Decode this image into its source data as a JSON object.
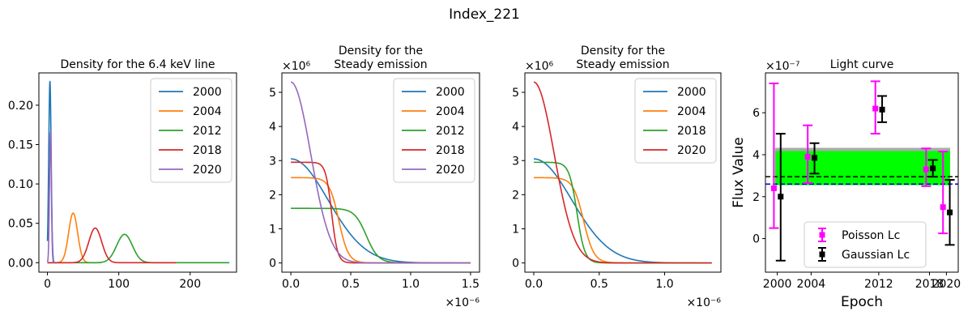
{
  "figure": {
    "suptitle": "Index_221"
  },
  "chart_data": [
    {
      "type": "line",
      "title": "Density for the 6.4 keV line",
      "xlabel": "",
      "ylabel": "",
      "xlim": [
        -12,
        265
      ],
      "ylim": [
        -0.012,
        0.241
      ],
      "xticks": [
        0,
        100,
        200
      ],
      "xtick_labels": [
        "0",
        "100",
        "200"
      ],
      "yticks": [
        0,
        0.05,
        0.1,
        0.15,
        0.2
      ],
      "ytick_labels": [
        "0.00",
        "0.05",
        "0.10",
        "0.15",
        "0.20"
      ],
      "x_multiplier": "",
      "y_multiplier": "",
      "legend_loc": "upper right",
      "series": [
        {
          "name": "2000",
          "color": "#1f77b4",
          "kind": "gauss",
          "mu": 3.5,
          "sigma": 1.7,
          "amp": 0.23,
          "x_start": 0,
          "x_end": 12,
          "tail": 0
        },
        {
          "name": "2004",
          "color": "#ff7f0e",
          "kind": "gauss",
          "mu": 36,
          "sigma": 6.3,
          "amp": 0.063,
          "x_start": 0,
          "x_end": 75,
          "tail": 0
        },
        {
          "name": "2012",
          "color": "#2ca02c",
          "kind": "gauss",
          "mu": 108,
          "sigma": 11,
          "amp": 0.036,
          "x_start": 0,
          "x_end": 255,
          "tail": 0
        },
        {
          "name": "2018",
          "color": "#d62728",
          "kind": "gauss",
          "mu": 67,
          "sigma": 9,
          "amp": 0.044,
          "x_start": 0,
          "x_end": 180,
          "tail": 0
        },
        {
          "name": "2020",
          "color": "#9467bd",
          "kind": "gauss",
          "mu": 4.2,
          "sigma": 1.3,
          "amp": 0.165,
          "x_start": 0,
          "x_end": 10,
          "tail": 0
        }
      ]
    },
    {
      "type": "line",
      "title": "Density for the\nSteady emission",
      "xlabel": "",
      "ylabel": "",
      "xlim": [
        -0.075,
        1.575
      ],
      "ylim": [
        -0.27,
        5.57
      ],
      "xticks": [
        0,
        0.5,
        1.0,
        1.5
      ],
      "xtick_labels": [
        "0.0",
        "0.5",
        "1.0",
        "1.5"
      ],
      "yticks": [
        0,
        1,
        2,
        3,
        4,
        5
      ],
      "ytick_labels": [
        "0",
        "1",
        "2",
        "3",
        "4",
        "5"
      ],
      "x_multiplier": "×10⁻⁶",
      "y_multiplier": "×10⁶",
      "legend_loc": "upper right",
      "series": [
        {
          "name": "2000",
          "color": "#1f77b4",
          "kind": "halfgauss",
          "amp": 3.05,
          "sigma": 0.31,
          "x_start": 0,
          "x_end": 1.5
        },
        {
          "name": "2004",
          "color": "#ff7f0e",
          "kind": "plateau",
          "amp": 2.5,
          "edge": 0.4,
          "w": 0.04,
          "x_start": 0,
          "x_end": 1.5
        },
        {
          "name": "2012",
          "color": "#2ca02c",
          "kind": "plateau",
          "amp": 1.6,
          "edge": 0.63,
          "w": 0.05,
          "x_start": 0,
          "x_end": 1.5
        },
        {
          "name": "2018",
          "color": "#d62728",
          "kind": "plateau",
          "amp": 2.95,
          "edge": 0.34,
          "w": 0.025,
          "x_start": 0,
          "x_end": 1.5
        },
        {
          "name": "2020",
          "color": "#9467bd",
          "kind": "halfgauss",
          "amp": 5.3,
          "sigma": 0.165,
          "x_start": 0,
          "x_end": 1.5
        }
      ]
    },
    {
      "type": "line",
      "title": "Density for the\nSteady emission",
      "xlabel": "",
      "ylabel": "",
      "xlim": [
        -0.068,
        1.43
      ],
      "ylim": [
        -0.27,
        5.57
      ],
      "xticks": [
        0,
        0.5,
        1.0
      ],
      "xtick_labels": [
        "0.0",
        "0.5",
        "1.0"
      ],
      "yticks": [
        0,
        1,
        2,
        3,
        4,
        5
      ],
      "ytick_labels": [
        "0",
        "1",
        "2",
        "3",
        "4",
        "5"
      ],
      "x_multiplier": "×10⁻⁶",
      "y_multiplier": "×10⁶",
      "legend_loc": "upper right",
      "series": [
        {
          "name": "2000",
          "color": "#1f77b4",
          "kind": "halfgauss",
          "amp": 3.05,
          "sigma": 0.29,
          "x_start": 0,
          "x_end": 1.36
        },
        {
          "name": "2004",
          "color": "#ff7f0e",
          "kind": "plateau",
          "amp": 2.5,
          "edge": 0.38,
          "w": 0.04,
          "x_start": 0,
          "x_end": 1.36
        },
        {
          "name": "2018",
          "color": "#2ca02c",
          "kind": "plateau",
          "amp": 2.95,
          "edge": 0.33,
          "w": 0.03,
          "x_start": 0,
          "x_end": 1.36
        },
        {
          "name": "2020",
          "color": "#d62728",
          "kind": "halfgauss",
          "amp": 5.3,
          "sigma": 0.155,
          "x_start": 0,
          "x_end": 1.36
        }
      ]
    },
    {
      "type": "errorbar",
      "title": "Light curve",
      "xlabel": "Epoch",
      "ylabel": "Flux Value",
      "xlim": [
        1998.6,
        2021.4
      ],
      "ylim": [
        -1.6,
        7.9
      ],
      "xticks": [
        2000,
        2004,
        2012,
        2018,
        2020
      ],
      "xtick_labels": [
        "2000",
        "2004",
        "2012",
        "2018",
        "2020"
      ],
      "yticks": [
        0,
        2,
        4,
        6
      ],
      "ytick_labels": [
        "0",
        "2",
        "4",
        "6"
      ],
      "x_multiplier": "",
      "y_multiplier": "×10⁻⁷",
      "legend_loc": "lower center",
      "band": {
        "color": "#00ff00",
        "y_low": 2.55,
        "y_high": 4.25,
        "edge_color": "#aaaaaa"
      },
      "hlines": [
        {
          "y": 2.95,
          "color": "#000000"
        },
        {
          "y": 2.6,
          "color": "#0000cc"
        }
      ],
      "series": [
        {
          "name": "Poisson Lc",
          "color": "#ff00ff",
          "x_offset": -0.4,
          "points": [
            {
              "x": 2000,
              "y": 2.4,
              "lo": 0.5,
              "hi": 7.4
            },
            {
              "x": 2004,
              "y": 3.9,
              "lo": 2.65,
              "hi": 5.4
            },
            {
              "x": 2012,
              "y": 6.2,
              "lo": 5.0,
              "hi": 7.5
            },
            {
              "x": 2018,
              "y": 3.3,
              "lo": 2.5,
              "hi": 4.3
            },
            {
              "x": 2020,
              "y": 1.5,
              "lo": 0.25,
              "hi": 4.15
            }
          ]
        },
        {
          "name": "Gaussian Lc",
          "color": "#000000",
          "x_offset": 0.4,
          "points": [
            {
              "x": 2000,
              "y": 2.0,
              "lo": -1.05,
              "hi": 5.0
            },
            {
              "x": 2004,
              "y": 3.85,
              "lo": 3.1,
              "hi": 4.55
            },
            {
              "x": 2012,
              "y": 6.15,
              "lo": 5.55,
              "hi": 6.8
            },
            {
              "x": 2018,
              "y": 3.35,
              "lo": 2.95,
              "hi": 3.75
            },
            {
              "x": 2020,
              "y": 1.25,
              "lo": -0.3,
              "hi": 2.8
            }
          ]
        }
      ]
    }
  ]
}
